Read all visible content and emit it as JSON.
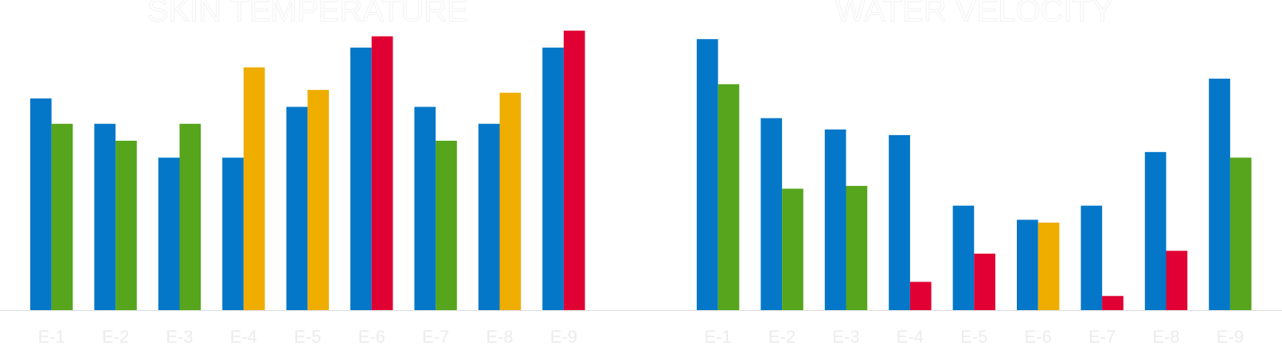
{
  "chart_data": [
    {
      "type": "bar",
      "title": "SKIN TEMPERATURE",
      "categories": [
        "E-1",
        "E-2",
        "E-3",
        "E-4",
        "E-5",
        "E-6",
        "E-7",
        "E-8",
        "E-9"
      ],
      "ylim": [
        0,
        100
      ],
      "series": [
        {
          "color": "#0477c9",
          "values": [
            75,
            66,
            54,
            54,
            72,
            93,
            72,
            66,
            93
          ]
        },
        {
          "colors": [
            "#56a51d",
            "#56a51d",
            "#56a51d",
            "#efad00",
            "#efad00",
            "#e00034",
            "#56a51d",
            "#efad00",
            "#e00034"
          ],
          "values": [
            66,
            60,
            66,
            86,
            78,
            97,
            60,
            77,
            99
          ]
        }
      ]
    },
    {
      "type": "bar",
      "title": "WATER VELOCITY",
      "categories": [
        "E-1",
        "E-2",
        "E-3",
        "E-4",
        "E-5",
        "E-6",
        "E-7",
        "E-8",
        "E-9"
      ],
      "ylim": [
        0,
        100
      ],
      "series": [
        {
          "color": "#0477c9",
          "values": [
            96,
            68,
            64,
            62,
            37,
            32,
            37,
            56,
            82
          ]
        },
        {
          "colors": [
            "#56a51d",
            "#56a51d",
            "#56a51d",
            "#e00034",
            "#e00034",
            "#efad00",
            "#e00034",
            "#e00034",
            "#56a51d"
          ],
          "values": [
            80,
            43,
            44,
            10,
            20,
            31,
            5,
            21,
            54
          ]
        }
      ]
    }
  ]
}
